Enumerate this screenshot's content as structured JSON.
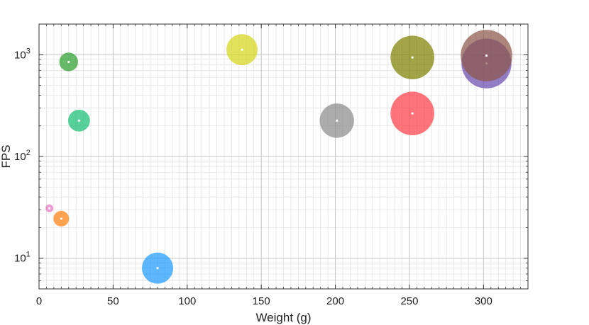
{
  "chart_data": {
    "type": "scatter",
    "title": "",
    "xlabel": "Weight (g)",
    "ylabel": "FPS",
    "xlim": [
      0,
      330
    ],
    "ylim": [
      5,
      2000
    ],
    "yscale": "log",
    "x_ticks": [
      0,
      50,
      100,
      150,
      200,
      250,
      300
    ],
    "y_ticks": [
      {
        "value": 10,
        "base": "10",
        "exp": "1"
      },
      {
        "value": 100,
        "base": "10",
        "exp": "2"
      },
      {
        "value": 1000,
        "base": "10",
        "exp": "3"
      }
    ],
    "grid": true,
    "legend": "none",
    "points": [
      {
        "x": 7,
        "y": 31,
        "size": 0.5,
        "color": "#e377c2"
      },
      {
        "x": 15,
        "y": 24.5,
        "size": 1.0,
        "color": "#ff7f0e"
      },
      {
        "x": 20,
        "y": 850,
        "size": 1.2,
        "color": "#2ca02c"
      },
      {
        "x": 27,
        "y": 225,
        "size": 1.4,
        "color": "#17be73"
      },
      {
        "x": 80,
        "y": 8,
        "size": 2.0,
        "color": "#1f9bff"
      },
      {
        "x": 137,
        "y": 1120,
        "size": 2.0,
        "color": "#d7d61c"
      },
      {
        "x": 201,
        "y": 225,
        "size": 2.2,
        "color": "#8c8c8c"
      },
      {
        "x": 252,
        "y": 940,
        "size": 2.8,
        "color": "#7f7f00"
      },
      {
        "x": 252,
        "y": 265,
        "size": 2.8,
        "color": "#ff3e47"
      },
      {
        "x": 302,
        "y": 820,
        "size": 3.2,
        "color": "#6a4cb0"
      },
      {
        "x": 302,
        "y": 980,
        "size": 3.3,
        "color": "#8c564b"
      }
    ]
  }
}
